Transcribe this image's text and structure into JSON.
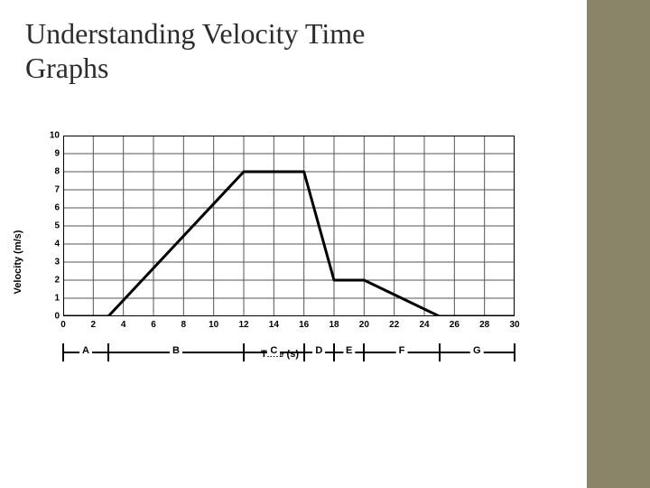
{
  "title": "Understanding Velocity Time\nGraphs",
  "sidebar_color": "#8a8468",
  "chart": {
    "type": "line",
    "ylabel": "Velocity (m/s)",
    "xlabel": "Time (s)",
    "xlim": [
      0,
      30
    ],
    "ylim": [
      0,
      10
    ],
    "xtick_step": 2,
    "ytick_step": 1,
    "xticks": [
      0,
      2,
      4,
      6,
      8,
      10,
      12,
      14,
      16,
      18,
      20,
      22,
      24,
      26,
      28,
      30
    ],
    "yticks": [
      0,
      1,
      2,
      3,
      4,
      5,
      6,
      7,
      8,
      9,
      10
    ],
    "grid_color": "#555555",
    "line_color": "#000000",
    "line_width": 3,
    "background_color": "#ffffff",
    "points": [
      {
        "x": 0,
        "y": 0
      },
      {
        "x": 3,
        "y": 0
      },
      {
        "x": 12,
        "y": 8
      },
      {
        "x": 16,
        "y": 8
      },
      {
        "x": 18,
        "y": 2
      },
      {
        "x": 20,
        "y": 2
      },
      {
        "x": 25,
        "y": 0
      },
      {
        "x": 30,
        "y": 0
      }
    ],
    "segments": [
      {
        "label": "A",
        "start": 0,
        "end": 3
      },
      {
        "label": "B",
        "start": 3,
        "end": 12
      },
      {
        "label": "C",
        "start": 12,
        "end": 16
      },
      {
        "label": "D",
        "start": 16,
        "end": 18
      },
      {
        "label": "E",
        "start": 18,
        "end": 20
      },
      {
        "label": "F",
        "start": 20,
        "end": 25
      },
      {
        "label": "G",
        "start": 25,
        "end": 30
      }
    ]
  }
}
